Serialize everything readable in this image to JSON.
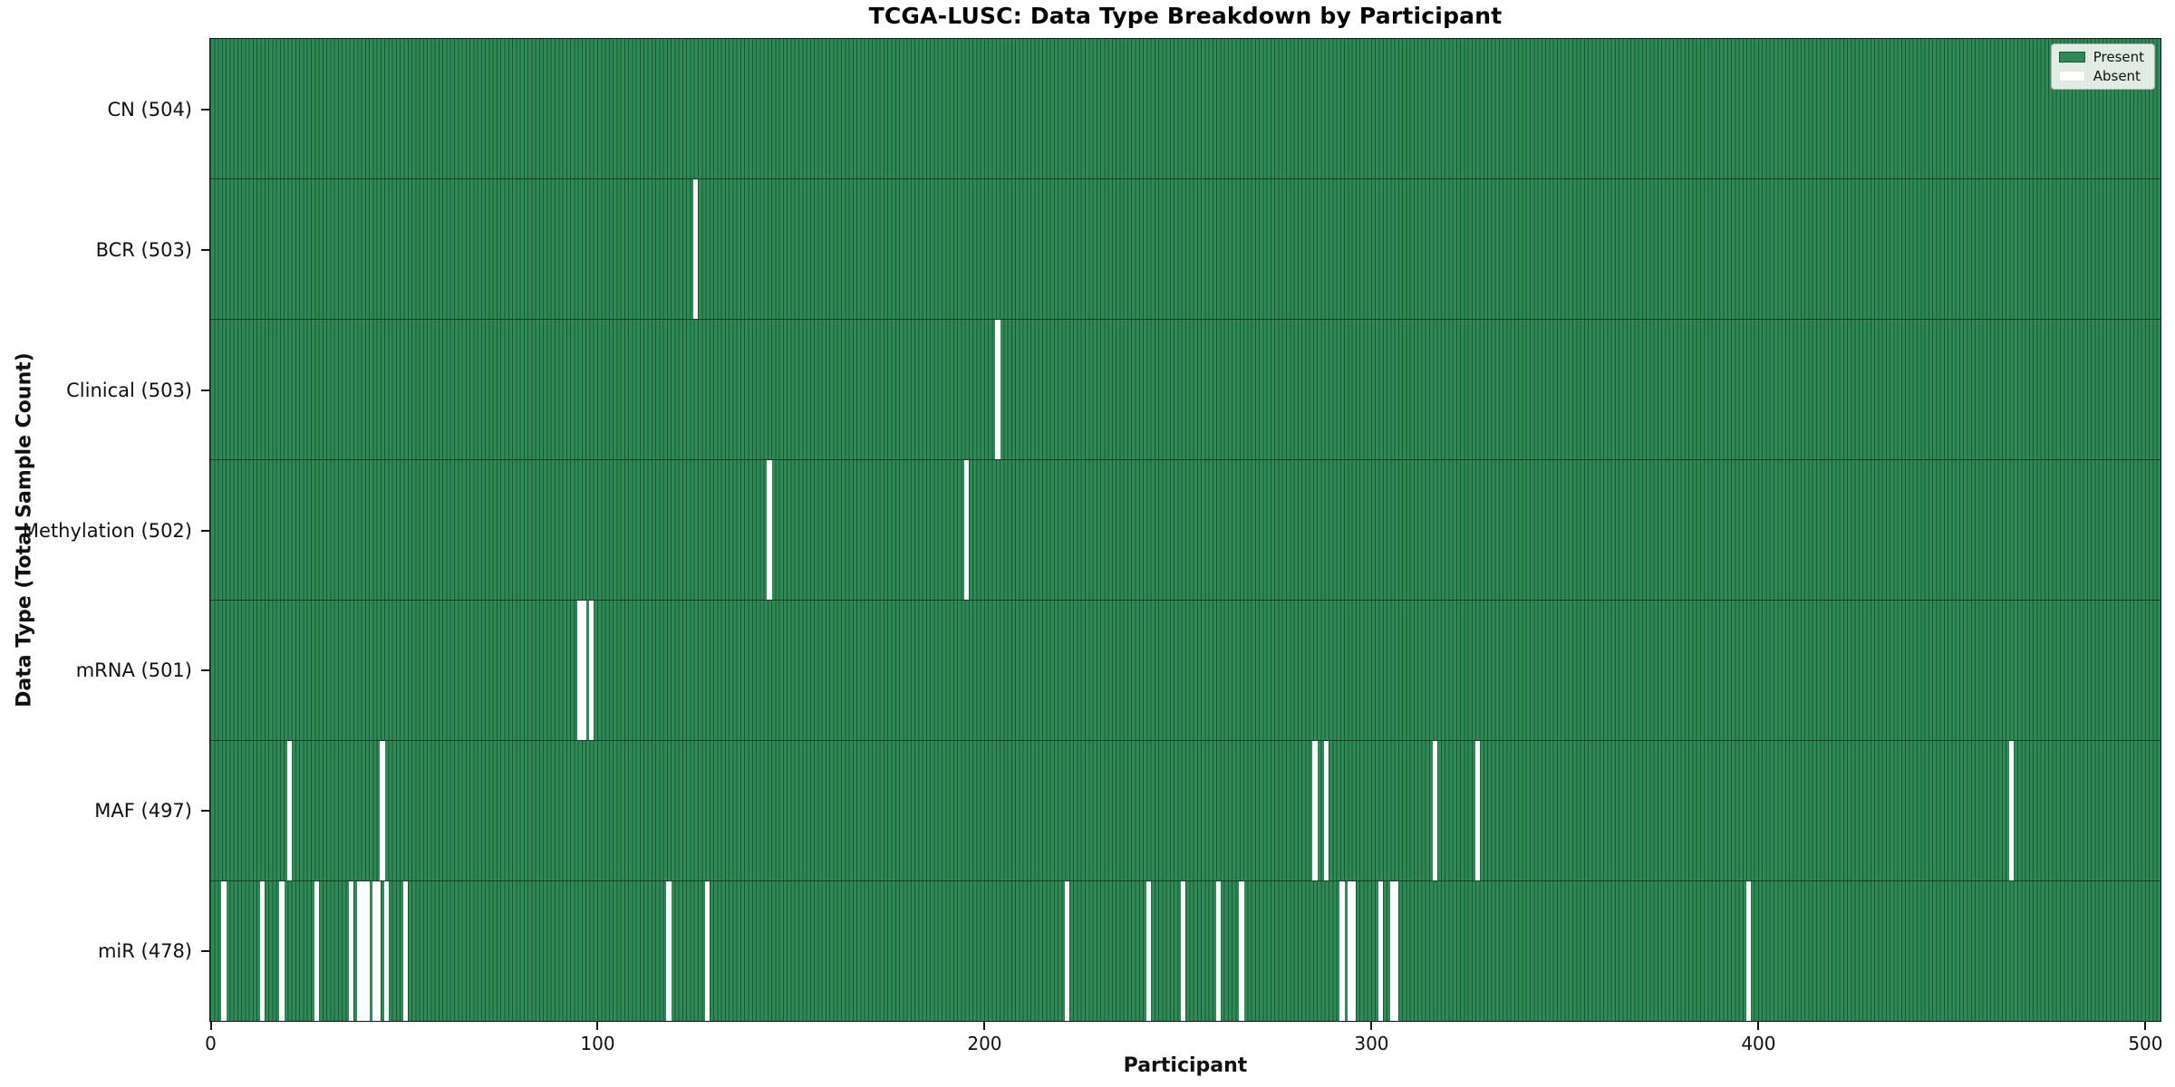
{
  "chart_data": {
    "type": "heatmap",
    "title": "TCGA-LUSC: Data Type Breakdown by Participant",
    "xlabel": "Participant",
    "ylabel": "Data Type (Total Sample Count)",
    "x_ticks": [
      "0",
      "100",
      "200",
      "300",
      "400",
      "500"
    ],
    "x_tick_values": [
      0,
      100,
      200,
      300,
      400,
      500
    ],
    "x_range": [
      0,
      504
    ],
    "n_participants": 504,
    "grid": false,
    "legend_position": "upper right",
    "legend": [
      {
        "label": "Present",
        "color": "#2e8b57"
      },
      {
        "label": "Absent",
        "color": "#ffffff"
      }
    ],
    "colors": {
      "present": "#2e8b57",
      "cell_edge": "#1d5434",
      "row_edge": "#173c27",
      "absent": "#ffffff",
      "axis": "#111111"
    },
    "rows": [
      {
        "label": "CN (504)",
        "total": 504,
        "absent_participants": []
      },
      {
        "label": "BCR (503)",
        "total": 503,
        "absent_participants": [
          125
        ]
      },
      {
        "label": "Clinical (503)",
        "total": 503,
        "absent_participants": [
          203
        ]
      },
      {
        "label": "Methylation (502)",
        "total": 502,
        "absent_participants": [
          144,
          195
        ]
      },
      {
        "label": "mRNA (501)",
        "total": 501,
        "absent_participants": [
          95,
          96,
          98
        ]
      },
      {
        "label": "MAF (497)",
        "total": 497,
        "absent_participants": [
          20,
          44,
          285,
          288,
          316,
          327,
          465
        ]
      },
      {
        "label": "miR (478)",
        "total": 478,
        "absent_participants": [
          3,
          13,
          18,
          27,
          36,
          38,
          39,
          40,
          42,
          43,
          45,
          50,
          118,
          128,
          221,
          242,
          251,
          260,
          266,
          292,
          294,
          295,
          302,
          305,
          306,
          397
        ]
      }
    ]
  }
}
